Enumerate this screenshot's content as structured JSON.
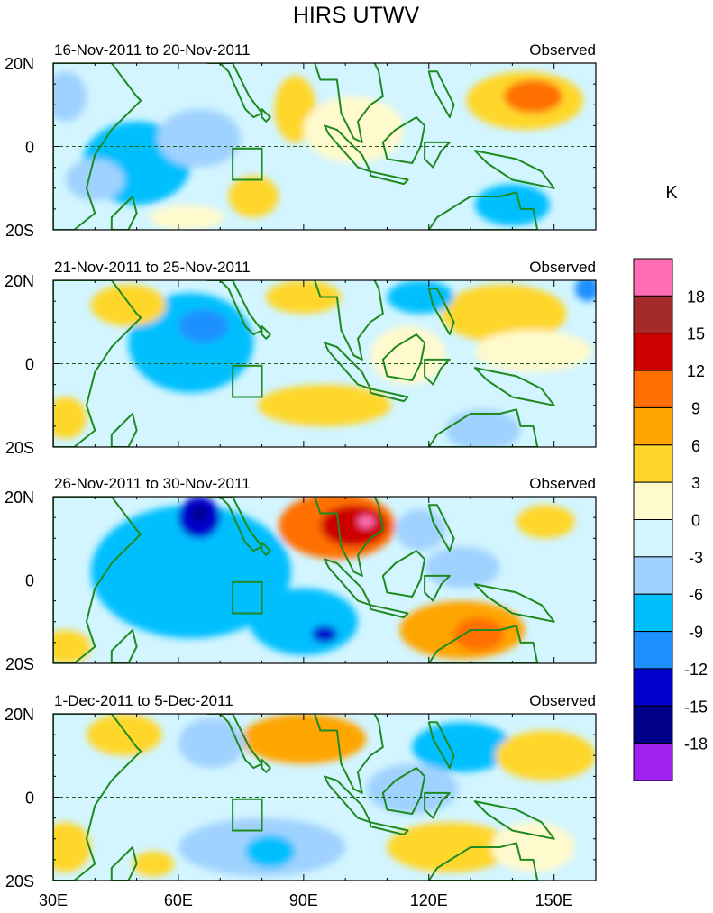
{
  "chart_data": {
    "type": "heatmap",
    "title": "HIRS UTWV",
    "units": "K",
    "x_ticks": [
      "30E",
      "60E",
      "90E",
      "120E",
      "150E"
    ],
    "lon_range": [
      30,
      160
    ],
    "lat_range": [
      -20,
      20
    ],
    "color_levels": {
      "labels": [
        "18",
        "15",
        "12",
        "9",
        "6",
        "3",
        "0",
        "-3",
        "-6",
        "-9",
        "-12",
        "-15",
        "-18"
      ],
      "colors": [
        "#ff6eb4",
        "#a52a2a",
        "#cd0000",
        "#ff7000",
        "#ffa500",
        "#ffd72a",
        "#fffacd",
        "#d2f5ff",
        "#a0d2ff",
        "#00bfff",
        "#1e90ff",
        "#0000cd",
        "#00008b",
        "#a020f0"
      ]
    },
    "panels": [
      {
        "date_range": "16-Nov-2011 to 20-Nov-2011",
        "label": "Observed",
        "y_ticks": [
          "20N",
          "0",
          "20S"
        ],
        "anomalies": [
          {
            "lon": 50,
            "lat": -4,
            "rlon": 13,
            "rlat": 10,
            "value": -8
          },
          {
            "lon": 40,
            "lat": -8,
            "rlon": 7,
            "rlat": 5,
            "value": -4
          },
          {
            "lon": 65,
            "lat": 2,
            "rlon": 10,
            "rlat": 7,
            "value": -3
          },
          {
            "lon": 88,
            "lat": 9,
            "rlon": 5,
            "rlat": 8,
            "value": 5
          },
          {
            "lon": 78,
            "lat": -12,
            "rlon": 6,
            "rlat": 5,
            "value": 4
          },
          {
            "lon": 102,
            "lat": 4,
            "rlon": 12,
            "rlat": 8,
            "value": 2
          },
          {
            "lon": 143,
            "lat": 11,
            "rlon": 14,
            "rlat": 7,
            "value": 6
          },
          {
            "lon": 145,
            "lat": 12,
            "rlon": 7,
            "rlat": 4,
            "value": 10
          },
          {
            "lon": 140,
            "lat": -14,
            "rlon": 9,
            "rlat": 5,
            "value": -7
          },
          {
            "lon": 62,
            "lat": -17,
            "rlon": 9,
            "rlat": 3,
            "value": 3
          },
          {
            "lon": 33,
            "lat": 12,
            "rlon": 5,
            "rlat": 6,
            "value": -3
          },
          {
            "lon": 120,
            "lat": -6,
            "rlon": 10,
            "rlat": 7,
            "value": -2
          }
        ]
      },
      {
        "date_range": "21-Nov-2011 to 25-Nov-2011",
        "label": "Observed",
        "y_ticks": [
          "20N",
          "0",
          "20S"
        ],
        "anomalies": [
          {
            "lon": 63,
            "lat": 5,
            "rlon": 15,
            "rlat": 12,
            "value": -7
          },
          {
            "lon": 63,
            "lat": 10,
            "rlon": 2,
            "rlat": 2,
            "value": -16
          },
          {
            "lon": 66,
            "lat": 9,
            "rlon": 6,
            "rlat": 4,
            "value": -11
          },
          {
            "lon": 48,
            "lat": 14,
            "rlon": 9,
            "rlat": 5,
            "value": 4
          },
          {
            "lon": 33,
            "lat": -13,
            "rlon": 5,
            "rlat": 5,
            "value": 6
          },
          {
            "lon": 90,
            "lat": 16,
            "rlon": 9,
            "rlat": 4,
            "value": 6
          },
          {
            "lon": 95,
            "lat": -10,
            "rlon": 16,
            "rlat": 5,
            "value": 6
          },
          {
            "lon": 115,
            "lat": 2,
            "rlon": 9,
            "rlat": 7,
            "value": 3
          },
          {
            "lon": 138,
            "lat": 12,
            "rlon": 15,
            "rlat": 7,
            "value": 5
          },
          {
            "lon": 145,
            "lat": 3,
            "rlon": 14,
            "rlat": 5,
            "value": 3
          },
          {
            "lon": 133,
            "lat": -16,
            "rlon": 9,
            "rlat": 5,
            "value": -5
          },
          {
            "lon": 118,
            "lat": 16,
            "rlon": 8,
            "rlat": 4,
            "value": -6
          },
          {
            "lon": 158,
            "lat": 18,
            "rlon": 3,
            "rlat": 3,
            "value": -10
          },
          {
            "lon": 55,
            "lat": -14,
            "rlon": 8,
            "rlat": 5,
            "value": -2
          }
        ]
      },
      {
        "date_range": "26-Nov-2011 to 30-Nov-2011",
        "label": "Observed",
        "y_ticks": [
          "20N",
          "0",
          "20S"
        ],
        "anomalies": [
          {
            "lon": 63,
            "lat": 2,
            "rlon": 24,
            "rlat": 16,
            "value": -8
          },
          {
            "lon": 65,
            "lat": 15,
            "rlon": 5,
            "rlat": 5,
            "value": -12
          },
          {
            "lon": 65,
            "lat": 16,
            "rlon": 2,
            "rlat": 2,
            "value": -17
          },
          {
            "lon": 90,
            "lat": -10,
            "rlon": 13,
            "rlat": 8,
            "value": -8
          },
          {
            "lon": 95,
            "lat": -13,
            "rlon": 3,
            "rlat": 2,
            "value": -14
          },
          {
            "lon": 98,
            "lat": 13,
            "rlon": 14,
            "rlat": 8,
            "value": 11
          },
          {
            "lon": 102,
            "lat": 13,
            "rlon": 8,
            "rlat": 5,
            "value": 14
          },
          {
            "lon": 105,
            "lat": 14,
            "rlon": 2,
            "rlat": 1.5,
            "value": 20
          },
          {
            "lon": 128,
            "lat": -12,
            "rlon": 15,
            "rlat": 7,
            "value": 7
          },
          {
            "lon": 132,
            "lat": -13,
            "rlon": 6,
            "rlat": 4,
            "value": 10
          },
          {
            "lon": 148,
            "lat": 14,
            "rlon": 7,
            "rlat": 4,
            "value": 5
          },
          {
            "lon": 118,
            "lat": 12,
            "rlon": 6,
            "rlat": 5,
            "value": -5
          },
          {
            "lon": 128,
            "lat": 3,
            "rlon": 9,
            "rlat": 5,
            "value": -3
          },
          {
            "lon": 33,
            "lat": -16,
            "rlon": 6,
            "rlat": 4,
            "value": 4
          }
        ]
      },
      {
        "date_range": "1-Dec-2011 to 5-Dec-2011",
        "label": "Observed",
        "y_ticks": [
          "20N",
          "0",
          "20S"
        ],
        "anomalies": [
          {
            "lon": 90,
            "lat": 14,
            "rlon": 15,
            "rlat": 6,
            "value": 8
          },
          {
            "lon": 68,
            "lat": 13,
            "rlon": 8,
            "rlat": 6,
            "value": -4
          },
          {
            "lon": 128,
            "lat": 12,
            "rlon": 12,
            "rlat": 6,
            "value": -6
          },
          {
            "lon": 116,
            "lat": 2,
            "rlon": 11,
            "rlat": 6,
            "value": -4
          },
          {
            "lon": 80,
            "lat": -12,
            "rlon": 20,
            "rlat": 7,
            "value": -5
          },
          {
            "lon": 82,
            "lat": -13,
            "rlon": 6,
            "rlat": 4,
            "value": -8
          },
          {
            "lon": 125,
            "lat": -12,
            "rlon": 15,
            "rlat": 6,
            "value": 5
          },
          {
            "lon": 47,
            "lat": 15,
            "rlon": 9,
            "rlat": 5,
            "value": 5
          },
          {
            "lon": 33,
            "lat": -12,
            "rlon": 6,
            "rlat": 6,
            "value": 5
          },
          {
            "lon": 148,
            "lat": 10,
            "rlon": 12,
            "rlat": 6,
            "value": 4
          },
          {
            "lon": 54,
            "lat": -16,
            "rlon": 5,
            "rlat": 3,
            "value": 6
          },
          {
            "lon": 145,
            "lat": -12,
            "rlon": 10,
            "rlat": 6,
            "value": 3
          }
        ]
      }
    ]
  }
}
